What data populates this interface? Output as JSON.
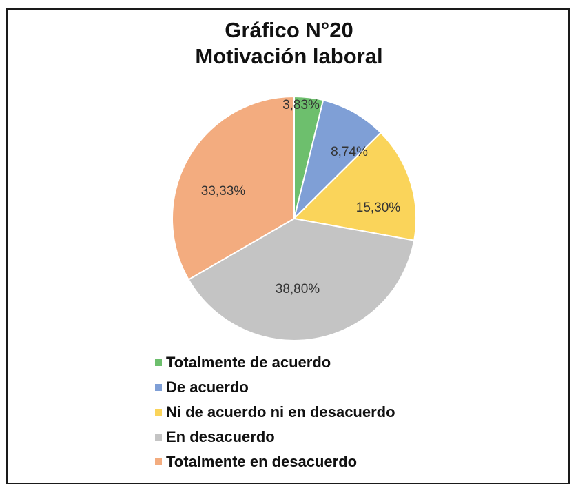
{
  "chart_data": {
    "type": "pie",
    "title": "Gráfico N°20",
    "subtitle": "Motivación laboral",
    "slices": [
      {
        "name": "Totalmente de acuerdo",
        "value": 3.83,
        "label": "3,83%",
        "color": "#6dbf6d"
      },
      {
        "name": "De acuerdo",
        "value": 8.74,
        "label": "8,74%",
        "color": "#7f9fd6"
      },
      {
        "name": "Ni de acuerdo ni en desacuerdo",
        "value": 15.3,
        "label": "15,30%",
        "color": "#fad45a"
      },
      {
        "name": "En desacuerdo",
        "value": 38.8,
        "label": "38,80%",
        "color": "#c4c4c4"
      },
      {
        "name": "Totalmente en desacuerdo",
        "value": 33.33,
        "label": "33,33%",
        "color": "#f3ac7f"
      }
    ],
    "legend_position": "bottom"
  }
}
